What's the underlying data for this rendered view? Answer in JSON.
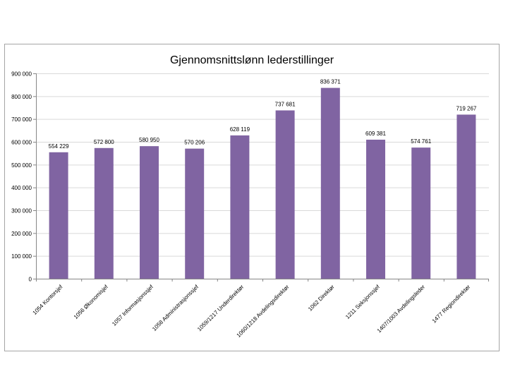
{
  "chart_data": {
    "type": "bar",
    "title": "Gjennomsnittslønn lederstillinger",
    "xlabel": "",
    "ylabel": "",
    "ylim": [
      0,
      900000
    ],
    "y_ticks": [
      0,
      100000,
      200000,
      300000,
      400000,
      500000,
      600000,
      700000,
      800000,
      900000
    ],
    "y_tick_labels": [
      "0",
      "100 000",
      "200 000",
      "300 000",
      "400 000",
      "500 000",
      "600 000",
      "700 000",
      "800 000",
      "900 000"
    ],
    "categories": [
      "1054 Kontorsjef",
      "1056 Økonomisjef",
      "1057 Informasjonssjef",
      "1058 Administrasjonssjef",
      "1059/1217 Underdirektør",
      "1060/1218 Avdelingsdirektør",
      "1062 Direktør",
      "1211 Seksjonssjef",
      "1407/1003 Avdelingsleder",
      "1477 Regiondirektør"
    ],
    "values": [
      554229,
      572800,
      580950,
      570206,
      628119,
      737681,
      836371,
      609381,
      574761,
      719267
    ],
    "data_labels": [
      "554 229",
      "572 800",
      "580 950",
      "570 206",
      "628 119",
      "737 681",
      "836 371",
      "609 381",
      "574 761",
      "719 267"
    ],
    "bar_color": "#8064a2",
    "grid": true,
    "grid_color": "#d9d9d9",
    "legend": "none"
  }
}
